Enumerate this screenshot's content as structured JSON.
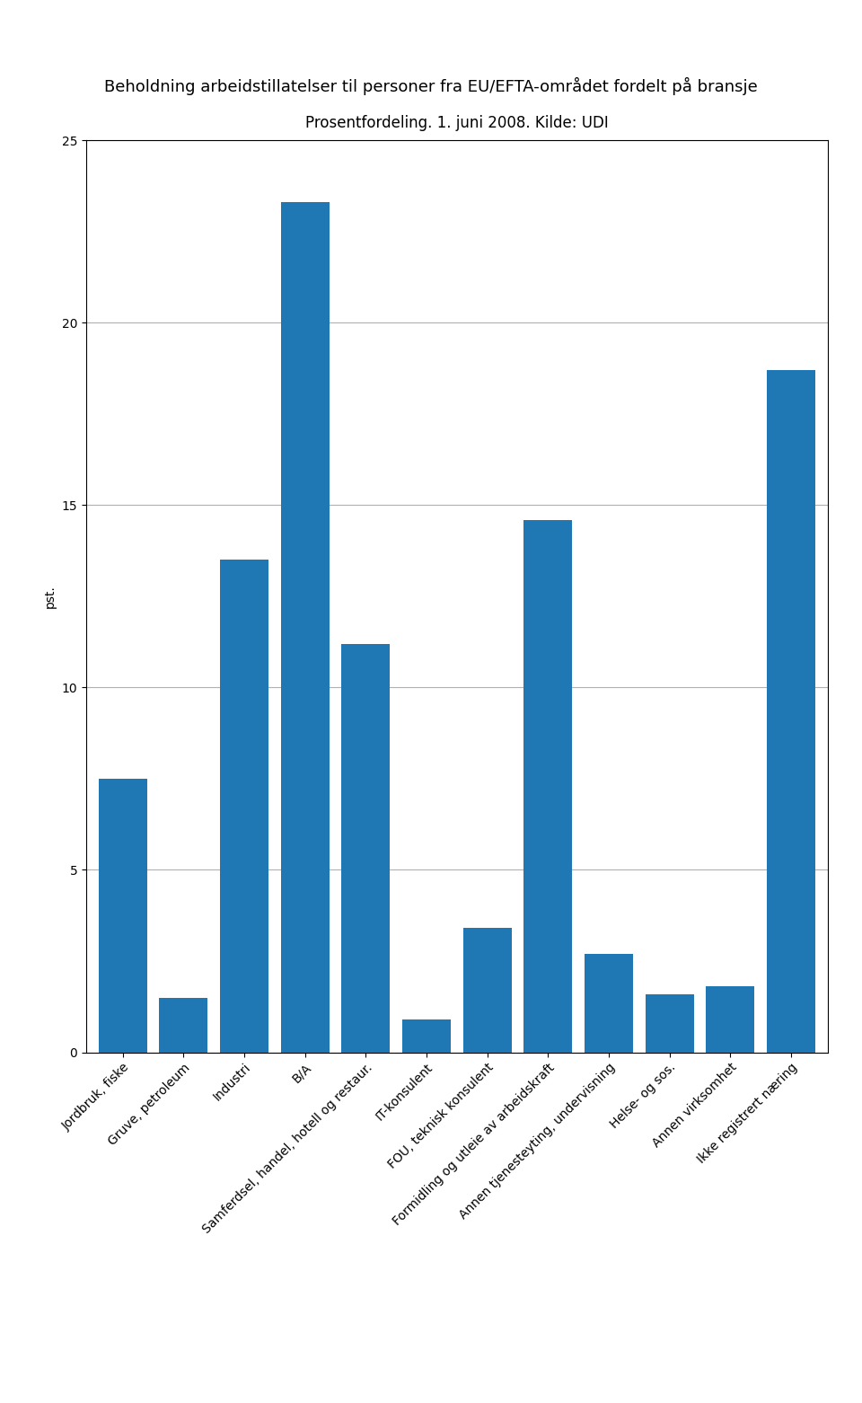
{
  "chart_data": {
    "type": "bar",
    "title": "Beholdning arbeidstillatelser til personer fra EU/EFTA-området fordelt på bransje",
    "subtitle": "Prosentfordeling. 1. juni 2008. Kilde: UDI",
    "ylabel": "pst.",
    "categories": [
      "Jordbruk, fiske",
      "Gruve, petroleum",
      "Industri",
      "B/A",
      "Samferdsel, handel, hotell og restaur.",
      "IT-konsulent",
      "FOU, teknisk konsulent",
      "Formidling og utleie av arbeidskraft",
      "Annen tjenesteyting, undervisning",
      "Helse- og sos.",
      "Annen virksomhet",
      "Ikke registrert næring"
    ],
    "values": [
      7.5,
      1.5,
      13.5,
      23.3,
      11.2,
      0.9,
      3.4,
      14.6,
      2.7,
      1.6,
      1.8,
      18.7
    ],
    "ylim": [
      0,
      25
    ],
    "yticks": [
      0,
      5,
      10,
      15,
      20,
      25
    ],
    "grid": true
  }
}
